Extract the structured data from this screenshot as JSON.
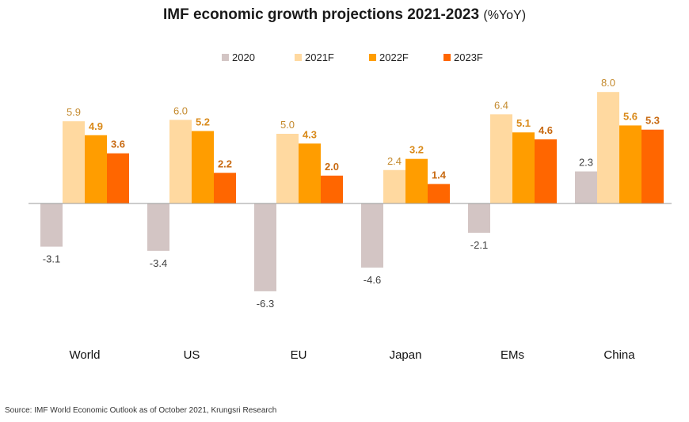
{
  "title": "IMF economic growth projections 2021-2023",
  "title_unit": "(%YoY)",
  "source": "Source: IMF World Economic Outlook as of October 2021, Krungsri Research",
  "chart_data": {
    "type": "bar",
    "categories": [
      "World",
      "US",
      "EU",
      "Japan",
      "EMs",
      "China"
    ],
    "series": [
      {
        "name": "2020",
        "color": "#d3c5c4",
        "label_color": "#404040",
        "label_bold": false,
        "values": [
          -3.1,
          -3.4,
          -6.3,
          -4.6,
          -2.1,
          2.3
        ],
        "labels": [
          "-3.1",
          "-3.4",
          "-6.3",
          "-4.6",
          "-2.1",
          "2.3"
        ]
      },
      {
        "name": "2021F",
        "color": "#ffd9a0",
        "label_color": "#c48a2e",
        "label_bold": false,
        "values": [
          5.9,
          6.0,
          5.0,
          2.4,
          6.4,
          8.0
        ],
        "labels": [
          "5.9",
          "6.0",
          "5.0",
          "2.4",
          "6.4",
          "8.0"
        ]
      },
      {
        "name": "2022F",
        "color": "#ff9d00",
        "label_color": "#d98a1a",
        "label_bold": true,
        "values": [
          4.9,
          5.2,
          4.3,
          3.2,
          5.1,
          5.6
        ],
        "labels": [
          "4.9",
          "5.2",
          "4.3",
          "3.2",
          "5.1",
          "5.6"
        ]
      },
      {
        "name": "2023F",
        "color": "#ff6600",
        "label_color": "#c86a12",
        "label_bold": true,
        "values": [
          3.6,
          2.2,
          2.0,
          1.4,
          4.6,
          5.3
        ],
        "labels": [
          "3.6",
          "2.2",
          "2.0",
          "1.4",
          "4.6",
          "5.3"
        ]
      }
    ],
    "legend_position": "top-center",
    "grid": false,
    "ylim": [
      -7,
      8.5
    ]
  }
}
